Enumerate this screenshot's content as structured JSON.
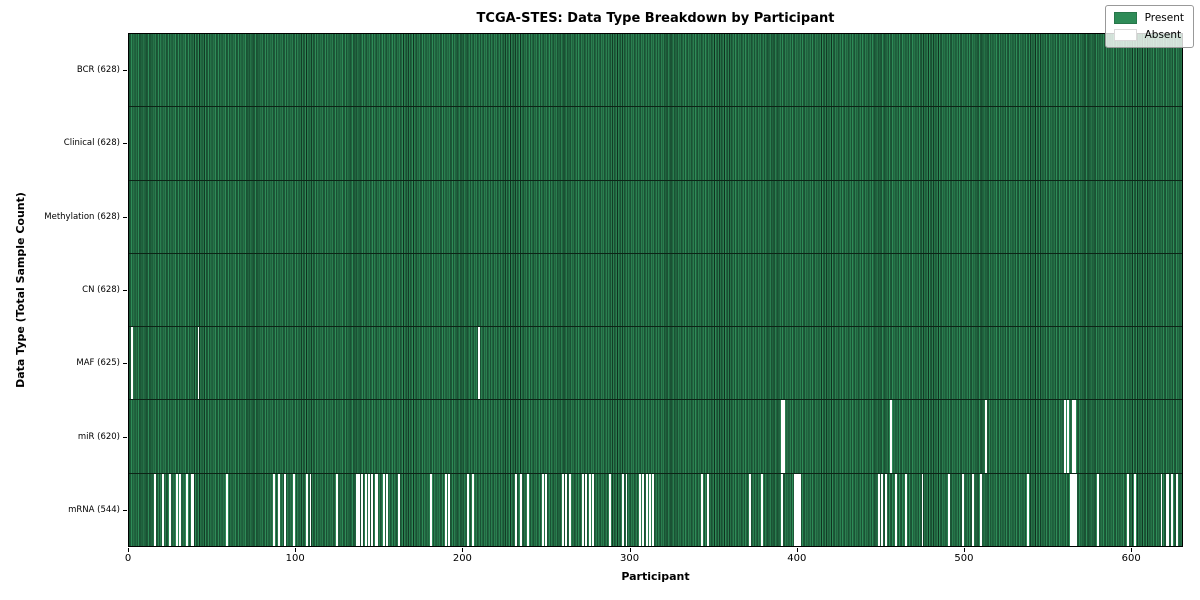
{
  "chart_data": {
    "type": "heatmap",
    "title": "TCGA-STES: Data Type Breakdown by Participant",
    "xlabel": "Participant",
    "ylabel": "Data Type (Total Sample Count)",
    "x_ticks": [
      0,
      100,
      200,
      300,
      400,
      500,
      600
    ],
    "x_max": 631,
    "n_participants": 628,
    "grid": false,
    "legend_position": "upper right",
    "colors": {
      "present": "#2e8b57",
      "absent": "#ffffff",
      "edge": "#123e27"
    },
    "legend": [
      {
        "label": "Present",
        "color": "#2e8b57"
      },
      {
        "label": "Absent",
        "color": "#ffffff"
      }
    ],
    "rows": [
      {
        "label": "BCR (628)",
        "data_type": "BCR",
        "present_count": 628,
        "absent_participants": []
      },
      {
        "label": "Clinical (628)",
        "data_type": "Clinical",
        "present_count": 628,
        "absent_participants": []
      },
      {
        "label": "Methylation (628)",
        "data_type": "Methylation",
        "present_count": 628,
        "absent_participants": []
      },
      {
        "label": "CN (628)",
        "data_type": "CN",
        "present_count": 628,
        "absent_participants": []
      },
      {
        "label": "MAF (625)",
        "data_type": "MAF",
        "present_count": 625,
        "absent_participants": [
          1,
          41,
          209
        ]
      },
      {
        "label": "miR (620)",
        "data_type": "miR",
        "present_count": 620,
        "absent_participants": [
          390,
          391,
          455,
          512,
          559,
          561,
          564,
          565
        ]
      },
      {
        "label": "mRNA (544)",
        "data_type": "mRNA",
        "present_count": 544,
        "absent_participants": [
          15,
          20,
          24,
          28,
          30,
          34,
          37,
          38,
          58,
          86,
          89,
          93,
          98,
          106,
          108,
          124,
          136,
          137,
          139,
          141,
          143,
          145,
          147,
          148,
          152,
          154,
          161,
          180,
          189,
          191,
          202,
          205,
          231,
          234,
          238,
          247,
          249,
          259,
          261,
          263,
          271,
          273,
          275,
          277,
          287,
          295,
          297,
          305,
          307,
          309,
          311,
          313,
          342,
          346,
          371,
          378,
          390,
          398,
          399,
          400,
          401,
          448,
          450,
          452,
          458,
          464,
          474,
          490,
          498,
          504,
          509,
          537,
          563,
          564,
          565,
          566,
          579,
          597,
          601,
          617,
          620,
          621,
          623,
          626
        ]
      }
    ]
  }
}
